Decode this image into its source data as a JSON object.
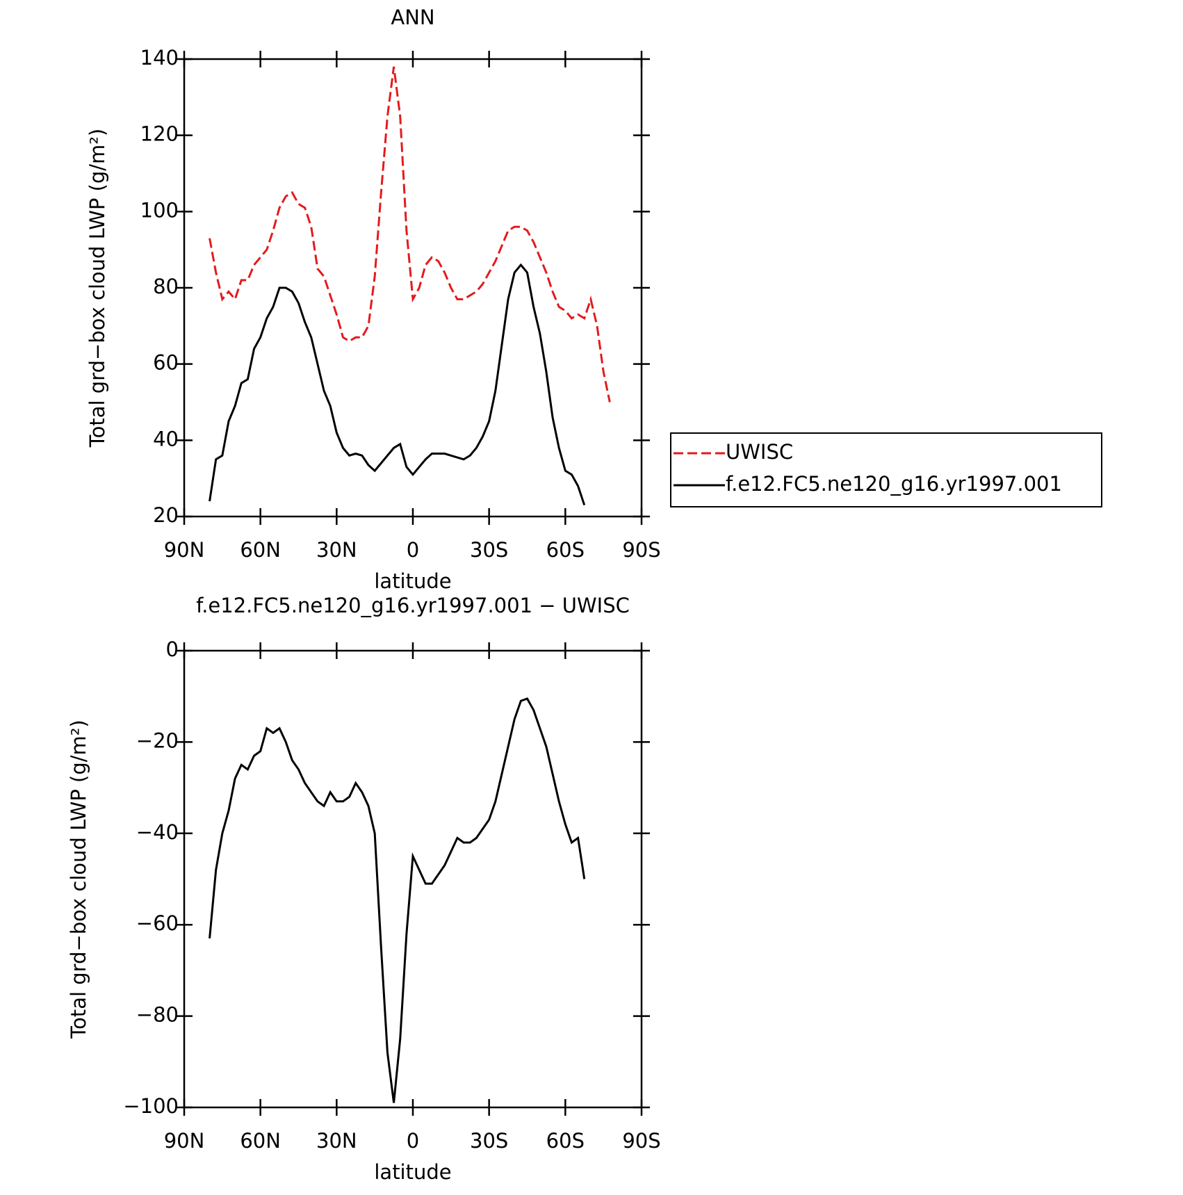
{
  "chart_data": [
    {
      "type": "line",
      "title": "ANN",
      "xlabel": "latitude",
      "ylabel": "Total grd−box cloud LWP (g/m²)",
      "x": [
        80,
        77.5,
        75,
        72.5,
        70,
        67.5,
        65,
        62.5,
        60,
        57.5,
        55,
        52.5,
        50,
        47.5,
        45,
        42.5,
        40,
        37.5,
        35,
        32.5,
        30,
        27.5,
        25,
        22.5,
        20,
        17.5,
        15,
        12.5,
        10,
        7.5,
        5,
        2.5,
        0,
        -2.5,
        -5,
        -7.5,
        -10,
        -12.5,
        -15,
        -17.5,
        -20,
        -22.5,
        -25,
        -27.5,
        -30,
        -32.5,
        -35,
        -37.5,
        -40,
        -42.5,
        -45,
        -47.5,
        -50,
        -52.5,
        -55,
        -57.5,
        -60,
        -62.5,
        -65,
        -67.5,
        -70,
        -72.5,
        -75,
        -77.5
      ],
      "series": [
        {
          "name": "UWISC",
          "color": "#e41a1c",
          "linestyle": "dashed",
          "values": [
            93,
            84,
            77,
            79,
            77,
            82,
            82,
            86,
            88,
            90,
            95,
            101,
            104,
            105,
            102,
            101,
            96,
            85,
            83,
            78,
            73,
            67,
            66,
            67,
            67,
            70,
            83,
            105,
            125,
            138,
            125,
            95,
            77,
            80,
            86,
            88,
            87,
            84,
            80,
            77,
            77,
            78,
            79,
            81,
            84,
            87,
            91,
            95,
            96,
            96,
            95,
            92,
            88,
            84,
            79,
            75,
            74,
            72,
            73,
            72,
            77,
            70,
            58,
            50
          ]
        },
        {
          "name": "f.e12.FC5.ne120_g16.yr1997.001",
          "color": "#000000",
          "linestyle": "solid",
          "values": [
            24,
            35,
            36,
            45,
            49,
            55,
            56,
            64,
            67,
            72,
            75,
            80,
            80,
            79,
            76,
            71,
            67,
            60,
            53,
            49,
            42,
            38,
            36,
            36.5,
            36,
            33.5,
            32,
            34,
            36,
            38,
            39,
            33,
            31,
            33,
            35,
            36.5,
            36.5,
            36.5,
            36,
            35.5,
            35,
            36,
            38,
            41,
            45,
            53,
            65,
            77,
            84,
            86,
            84,
            75,
            68,
            58,
            46,
            38,
            32,
            31,
            28,
            23,
            null,
            null,
            null,
            null
          ]
        }
      ],
      "xlim": [
        90,
        -90
      ],
      "xticks": [
        {
          "value": 90,
          "label": "90N"
        },
        {
          "value": 60,
          "label": "60N"
        },
        {
          "value": 30,
          "label": "30N"
        },
        0,
        {
          "value": -30,
          "label": "30S"
        },
        {
          "value": -60,
          "label": "60S"
        },
        {
          "value": -90,
          "label": "90S"
        }
      ],
      "ylim": [
        20,
        140
      ],
      "yticks": [
        20,
        40,
        60,
        80,
        100,
        120,
        140
      ],
      "legend": "right"
    },
    {
      "type": "line",
      "title": "f.e12.FC5.ne120_g16.yr1997.001 − UWISC",
      "xlabel": "latitude",
      "ylabel": "Total grd−box cloud LWP (g/m²)",
      "x": [
        80,
        77.5,
        75,
        72.5,
        70,
        67.5,
        65,
        62.5,
        60,
        57.5,
        55,
        52.5,
        50,
        47.5,
        45,
        42.5,
        40,
        37.5,
        35,
        32.5,
        30,
        27.5,
        25,
        22.5,
        20,
        17.5,
        15,
        12.5,
        10,
        7.5,
        5,
        2.5,
        0,
        -2.5,
        -5,
        -7.5,
        -10,
        -12.5,
        -15,
        -17.5,
        -20,
        -22.5,
        -25,
        -27.5,
        -30,
        -32.5,
        -35,
        -37.5,
        -40,
        -42.5,
        -45,
        -47.5,
        -50,
        -52.5,
        -55,
        -57.5,
        -60,
        -62.5,
        -65,
        -67.5,
        -70,
        -72.5,
        -75,
        -77.5
      ],
      "series": [
        {
          "color": "#000000",
          "linestyle": "solid",
          "values": [
            -63,
            -48,
            -40,
            -35,
            -28,
            -25,
            -26,
            -23,
            -22,
            -17,
            -18,
            -17,
            -20,
            -24,
            -26,
            -29,
            -31,
            -33,
            -34,
            -31,
            -33,
            -33,
            -32,
            -29,
            -31,
            -34,
            -40,
            -65,
            -88,
            -99,
            -85,
            -62,
            -45,
            -48,
            -51,
            -51,
            -49,
            -47,
            -44,
            -41,
            -42,
            -42,
            -41,
            -39,
            -37,
            -33,
            -27,
            -21,
            -15,
            -11,
            -10.5,
            -13,
            -17,
            -21,
            -27,
            -33,
            -38,
            -42,
            -41,
            -50,
            null,
            null,
            null,
            null
          ]
        }
      ],
      "xlim": [
        90,
        -90
      ],
      "xticks": [
        {
          "value": 90,
          "label": "90N"
        },
        {
          "value": 60,
          "label": "60N"
        },
        {
          "value": 30,
          "label": "30N"
        },
        0,
        {
          "value": -30,
          "label": "30S"
        },
        {
          "value": -60,
          "label": "60S"
        },
        {
          "value": -90,
          "label": "90S"
        }
      ],
      "ylim": [
        -100,
        0
      ],
      "yticks": [
        {
          "value": -100,
          "label": "−100"
        },
        {
          "value": -80,
          "label": "−80"
        },
        {
          "value": -60,
          "label": "−60"
        },
        {
          "value": -40,
          "label": "−40"
        },
        {
          "value": -20,
          "label": "−20"
        },
        0
      ]
    }
  ]
}
